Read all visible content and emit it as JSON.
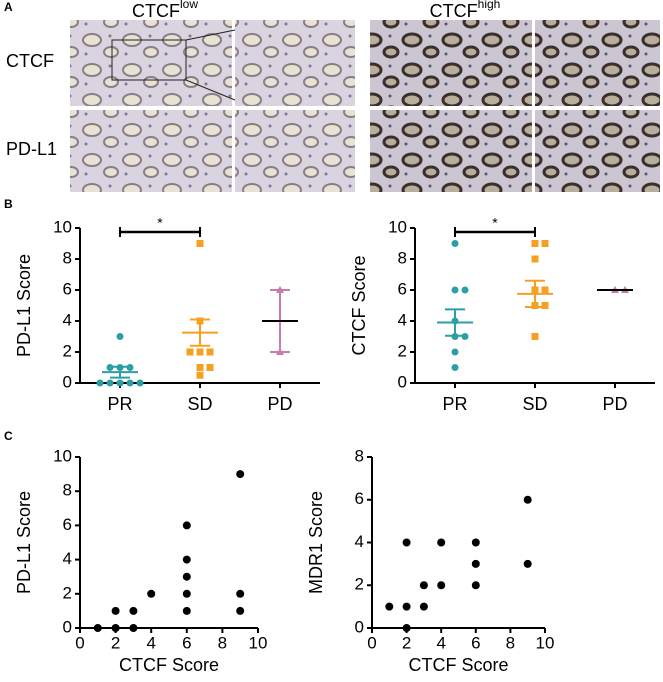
{
  "panel_labels": [
    "A",
    "B",
    "C"
  ],
  "images": {
    "columns": [
      {
        "label": "CTCF",
        "superscript": "low"
      },
      {
        "label": "CTCF",
        "superscript": "high"
      }
    ],
    "rows": [
      "CTCF",
      "PD-L1"
    ]
  },
  "chart_data": [
    {
      "type": "dot",
      "ylabel": "PD-L1 Score",
      "ylim": [
        0,
        10
      ],
      "yticks": [
        0,
        2,
        4,
        6,
        8,
        10
      ],
      "significance": "*",
      "groups": [
        {
          "label": "PR",
          "color": "#2a9fa6",
          "values": [
            3,
            1,
            1,
            1,
            0,
            0,
            0,
            0,
            0
          ],
          "mean": 0.7,
          "sem": 0.35
        },
        {
          "label": "SD",
          "color": "#f5a020",
          "values": [
            9,
            4,
            2,
            2,
            2,
            1,
            1,
            0.5
          ],
          "mean": 3.25,
          "sem": 0.85
        },
        {
          "label": "PD",
          "color": "#c97bab",
          "values": [
            6,
            2
          ],
          "mean": 4,
          "sem": 2
        }
      ]
    },
    {
      "type": "dot",
      "ylabel": "CTCF Score",
      "ylim": [
        0,
        10
      ],
      "yticks": [
        0,
        2,
        4,
        6,
        8,
        10
      ],
      "significance": "*",
      "groups": [
        {
          "label": "PR",
          "color": "#2a9fa6",
          "values": [
            9,
            6,
            6,
            4,
            3,
            3,
            2,
            1
          ],
          "mean": 3.9,
          "sem": 0.85
        },
        {
          "label": "SD",
          "color": "#f5a020",
          "values": [
            9,
            9,
            8,
            6,
            6,
            5,
            5,
            3
          ],
          "mean": 5.75,
          "sem": 0.85
        },
        {
          "label": "PD",
          "color": "#c97bab",
          "values": [
            6,
            6
          ],
          "mean": 6,
          "sem": 0
        }
      ]
    },
    {
      "type": "scatter",
      "xlabel": "CTCF Score",
      "ylabel": "PD-L1 Score",
      "color": "#000000",
      "xlim": [
        0,
        10
      ],
      "xticks": [
        0,
        2,
        4,
        6,
        8,
        10
      ],
      "ylim": [
        0,
        10
      ],
      "yticks": [
        0,
        2,
        4,
        6,
        8,
        10
      ],
      "x": [
        1,
        2,
        2,
        3,
        3,
        4,
        6,
        6,
        6,
        6,
        6,
        9,
        9,
        9
      ],
      "y": [
        0,
        0,
        1,
        0,
        1,
        2,
        1,
        2,
        3,
        4,
        6,
        1,
        2,
        9
      ]
    },
    {
      "type": "scatter",
      "xlabel": "CTCF Score",
      "ylabel": "MDR1 Score",
      "color": "#000000",
      "xlim": [
        0,
        10
      ],
      "xticks": [
        0,
        2,
        4,
        6,
        8,
        10
      ],
      "ylim": [
        0,
        8
      ],
      "yticks": [
        0,
        2,
        4,
        6,
        8
      ],
      "x": [
        1,
        2,
        2,
        2,
        3,
        3,
        4,
        4,
        6,
        6,
        6,
        9,
        9
      ],
      "y": [
        1,
        0,
        1,
        4,
        1,
        2,
        2,
        4,
        2,
        3,
        4,
        3,
        6
      ]
    }
  ]
}
